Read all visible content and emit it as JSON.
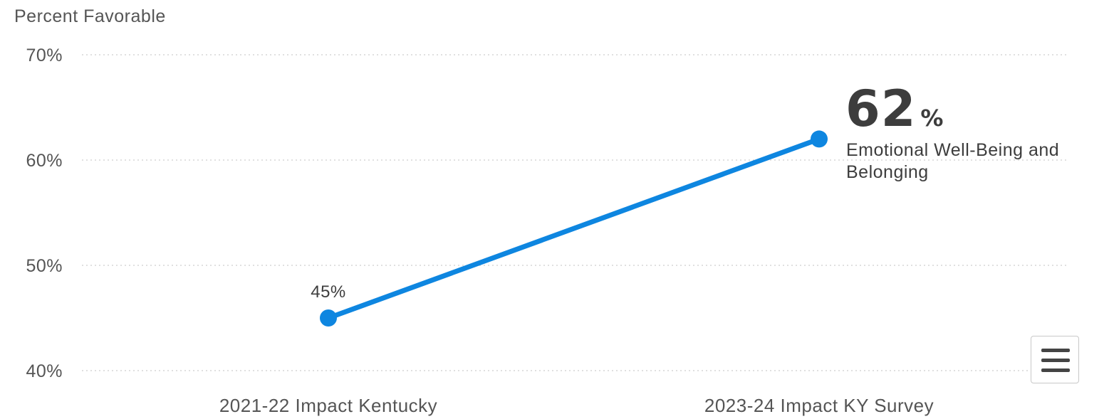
{
  "chart_data": {
    "type": "line",
    "ylabel": "Percent Favorable",
    "categories": [
      "2021-22 Impact Kentucky",
      "2023-24 Impact KY Survey"
    ],
    "series": [
      {
        "name": "Emotional Well-Being and Belonging",
        "values": [
          45,
          62
        ],
        "color": "#0e86e0"
      }
    ],
    "data_labels": [
      "45%"
    ],
    "last_value": {
      "number": "62",
      "suffix": "%"
    },
    "series_label_lines": [
      "Emotional Well-Being and",
      "Belonging"
    ],
    "ylim": [
      40,
      70
    ],
    "yticks": [
      40,
      50,
      60,
      70
    ],
    "ytick_labels": [
      "40%",
      "50%",
      "60%",
      "70%"
    ],
    "grid": true,
    "legend": "none"
  },
  "menu": {
    "icon": "hamburger-menu-icon"
  }
}
